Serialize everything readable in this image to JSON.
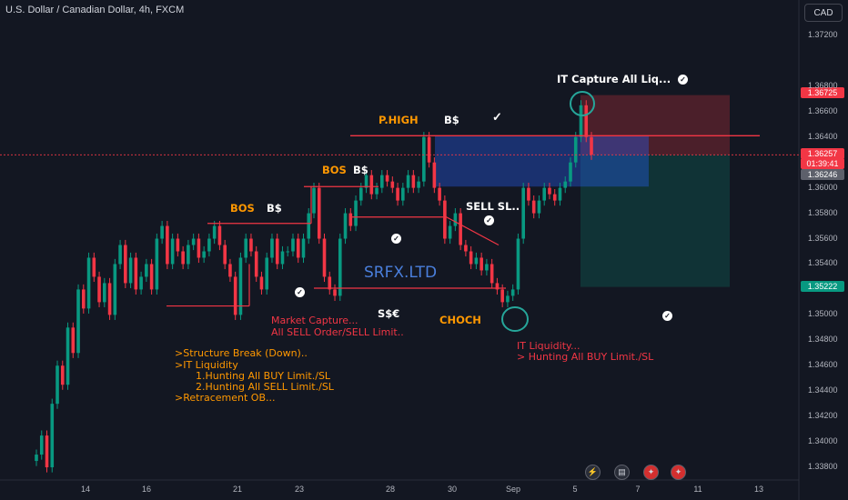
{
  "header": {
    "title": "U.S. Dollar / Canadian Dollar, 4h, FXCM",
    "currency_button": "CAD"
  },
  "watermark": "SRFX.LTD",
  "annotations": {
    "bos1": "BOS",
    "bs1": "B$",
    "bos2": "BOS",
    "bs2": "B$",
    "phigh": "P.HIGH",
    "bs3": "B$",
    "sell_sl": "SELL SL..",
    "it_capture": "IT Capture All Liq...",
    "sse": "S$€",
    "choch": "CHOCH",
    "market_capture_1": "Market Capture...",
    "market_capture_2": "All SELL Order/SELL Limit..",
    "it_liquidity_1": "IT Liquidity...",
    "it_liquidity_2": "> Hunting All BUY Limit./SL",
    "notes": [
      ">Structure Break (Down)..",
      ">IT Liquidity",
      "1.Hunting All BUY Limit./SL",
      "2.Hunting All SELL Limit./SL",
      ">Retracement OB..."
    ]
  },
  "price_labels": {
    "top": "1.36725",
    "current_price": "1.36257",
    "countdown": "01:39:41",
    "entry": "1.36246",
    "target": "1.35222"
  },
  "event_icons": [
    "lightning-icon",
    "us-flag-icon",
    "canada-flag-icon",
    "canada-flag-icon"
  ],
  "colors": {
    "up": "#089981",
    "down": "#f23645",
    "background": "#131722",
    "level_line": "#f23645"
  },
  "chart_data": {
    "type": "candlestick",
    "symbol": "U.S. Dollar / Canadian Dollar",
    "timeframe": "4h",
    "source": "FXCM",
    "ylim": [
      1.337,
      1.3735
    ],
    "y_ticks": [
      1.372,
      1.368,
      1.366,
      1.364,
      1.36,
      1.358,
      1.356,
      1.354,
      1.35,
      1.348,
      1.346,
      1.344,
      1.342,
      1.34,
      1.338
    ],
    "x_ticks": [
      "14",
      "16",
      "21",
      "23",
      "28",
      "30",
      "Sep",
      "5",
      "7",
      "11",
      "13"
    ],
    "levels": {
      "p_high": 1.3641,
      "bos_upper": 1.36,
      "bos_lower": 1.3573,
      "sse_low": 1.3522,
      "position_top": 1.3673,
      "position_stop": 1.3626,
      "position_target": 1.3522
    },
    "close_path": [
      1.339,
      1.3405,
      1.338,
      1.343,
      1.346,
      1.3445,
      1.349,
      1.347,
      1.352,
      1.3505,
      1.3545,
      1.353,
      1.351,
      1.3525,
      1.35,
      1.354,
      1.3555,
      1.3525,
      1.3545,
      1.352,
      1.353,
      1.354,
      1.352,
      1.356,
      1.357,
      1.354,
      1.356,
      1.355,
      1.354,
      1.3555,
      1.356,
      1.3545,
      1.355,
      1.356,
      1.357,
      1.3555,
      1.354,
      1.353,
      1.35,
      1.3545,
      1.356,
      1.355,
      1.353,
      1.352,
      1.3545,
      1.356,
      1.354,
      1.355,
      1.355,
      1.356,
      1.3545,
      1.356,
      1.358,
      1.36,
      1.356,
      1.353,
      1.352,
      1.3515,
      1.356,
      1.358,
      1.357,
      1.359,
      1.36,
      1.361,
      1.3595,
      1.36,
      1.361,
      1.3605,
      1.36,
      1.359,
      1.36,
      1.361,
      1.36,
      1.3605,
      1.364,
      1.362,
      1.36,
      1.359,
      1.356,
      1.357,
      1.358,
      1.3555,
      1.355,
      1.354,
      1.3545,
      1.3535,
      1.354,
      1.3525,
      1.352,
      1.351,
      1.3515,
      1.352,
      1.356,
      1.36,
      1.359,
      1.358,
      1.359,
      1.36,
      1.3595,
      1.359,
      1.36,
      1.3605,
      1.362,
      1.364,
      1.3665,
      1.364,
      1.3626
    ]
  }
}
